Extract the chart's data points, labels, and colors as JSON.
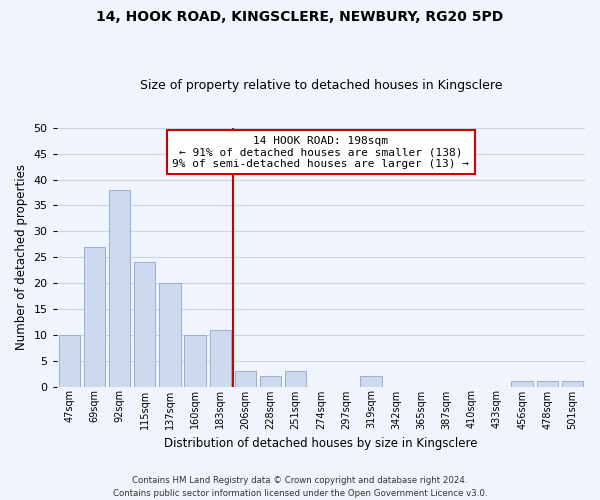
{
  "title": "14, HOOK ROAD, KINGSCLERE, NEWBURY, RG20 5PD",
  "subtitle": "Size of property relative to detached houses in Kingsclere",
  "xlabel": "Distribution of detached houses by size in Kingsclere",
  "ylabel": "Number of detached properties",
  "bar_labels": [
    "47sqm",
    "69sqm",
    "92sqm",
    "115sqm",
    "137sqm",
    "160sqm",
    "183sqm",
    "206sqm",
    "228sqm",
    "251sqm",
    "274sqm",
    "297sqm",
    "319sqm",
    "342sqm",
    "365sqm",
    "387sqm",
    "410sqm",
    "433sqm",
    "456sqm",
    "478sqm",
    "501sqm"
  ],
  "bar_values": [
    10,
    27,
    38,
    24,
    20,
    10,
    11,
    3,
    2,
    3,
    0,
    0,
    2,
    0,
    0,
    0,
    0,
    0,
    1,
    1,
    1
  ],
  "bar_color": "#ccd9ee",
  "bar_edge_color": "#9ab0d0",
  "vline_color": "#cc0000",
  "annotation_title": "14 HOOK ROAD: 198sqm",
  "annotation_line1": "← 91% of detached houses are smaller (138)",
  "annotation_line2": "9% of semi-detached houses are larger (13) →",
  "annotation_box_edge": "#cc0000",
  "ylim": [
    0,
    50
  ],
  "yticks": [
    0,
    5,
    10,
    15,
    20,
    25,
    30,
    35,
    40,
    45,
    50
  ],
  "footer_line1": "Contains HM Land Registry data © Crown copyright and database right 2024.",
  "footer_line2": "Contains public sector information licensed under the Open Government Licence v3.0.",
  "bg_color": "#f0f4fc",
  "grid_color": "#c8d5e8"
}
